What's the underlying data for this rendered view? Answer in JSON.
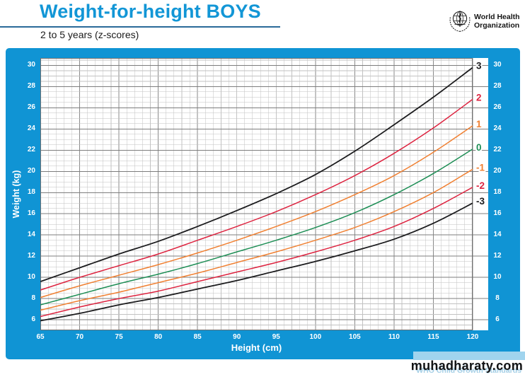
{
  "header": {
    "title": "Weight-for-height BOYS",
    "subtitle": "2 to 5 years (z-scores)"
  },
  "logo": {
    "name": "World Health Organization",
    "line1": "World Health",
    "line2": "Organization"
  },
  "watermark": "muhadharaty.com",
  "background_credit": "WHO Child Growth Standards",
  "colors": {
    "band_blue": "#1094d4",
    "title_blue": "#1296d6",
    "rule_blue": "#2b6a99",
    "light_blue_strip": "#a0d4ee",
    "grid_minor": "#c2c2c2",
    "grid_mid": "#8a8a8a",
    "grid_major": "#7d7d7d",
    "plot_border": "#6f6f6f",
    "sd3_black": "#1c1c1e",
    "sd2_red": "#dd2440",
    "sd1_orange": "#f08032",
    "sd0_green": "#1e8e55"
  },
  "chart_data": {
    "type": "line",
    "title": "Weight-for-height BOYS",
    "subtitle": "2 to 5 years (z-scores)",
    "xlabel": "Height (cm)",
    "ylabel": "Weight (kg)",
    "xlim": [
      65,
      120
    ],
    "ylim": [
      5,
      30.7
    ],
    "x_ticks": [
      65,
      70,
      75,
      80,
      85,
      90,
      95,
      100,
      105,
      110,
      115,
      120
    ],
    "y_ticks": [
      6,
      8,
      10,
      12,
      14,
      16,
      18,
      20,
      22,
      24,
      26,
      28,
      30
    ],
    "x_minor_step": 1,
    "y_minor_step": 0.5,
    "grid": "on",
    "legend_position": "labels-at-right-end-of-curves",
    "x": [
      65,
      70,
      75,
      80,
      85,
      90,
      95,
      100,
      105,
      110,
      115,
      120
    ],
    "series": [
      {
        "name": "3",
        "z": 3,
        "color": "#1c1c1e",
        "values": [
          9.6,
          10.9,
          12.2,
          13.4,
          14.8,
          16.3,
          17.9,
          19.7,
          21.9,
          24.4,
          27.0,
          29.8
        ]
      },
      {
        "name": "2",
        "z": 2,
        "color": "#dd2440",
        "values": [
          8.8,
          10.0,
          11.1,
          12.2,
          13.5,
          14.8,
          16.2,
          17.8,
          19.6,
          21.7,
          24.1,
          26.8
        ]
      },
      {
        "name": "1",
        "z": 1,
        "color": "#f08032",
        "values": [
          8.1,
          9.2,
          10.2,
          11.2,
          12.3,
          13.5,
          14.8,
          16.2,
          17.8,
          19.6,
          21.8,
          24.3
        ]
      },
      {
        "name": "0",
        "z": 0,
        "color": "#1e8e55",
        "values": [
          7.4,
          8.4,
          9.4,
          10.3,
          11.3,
          12.4,
          13.5,
          14.7,
          16.1,
          17.8,
          19.8,
          22.1
        ]
      },
      {
        "name": "-1",
        "z": -1,
        "color": "#f08032",
        "values": [
          6.9,
          7.8,
          8.6,
          9.5,
          10.4,
          11.4,
          12.4,
          13.5,
          14.7,
          16.2,
          18.0,
          20.2
        ]
      },
      {
        "name": "-2",
        "z": -2,
        "color": "#dd2440",
        "values": [
          6.3,
          7.2,
          8.0,
          8.7,
          9.6,
          10.5,
          11.4,
          12.4,
          13.5,
          14.8,
          16.5,
          18.5
        ]
      },
      {
        "name": "-3",
        "z": -3,
        "color": "#1c1c1e",
        "values": [
          5.9,
          6.6,
          7.4,
          8.1,
          8.9,
          9.7,
          10.6,
          11.5,
          12.5,
          13.6,
          15.1,
          17.0
        ]
      }
    ]
  }
}
